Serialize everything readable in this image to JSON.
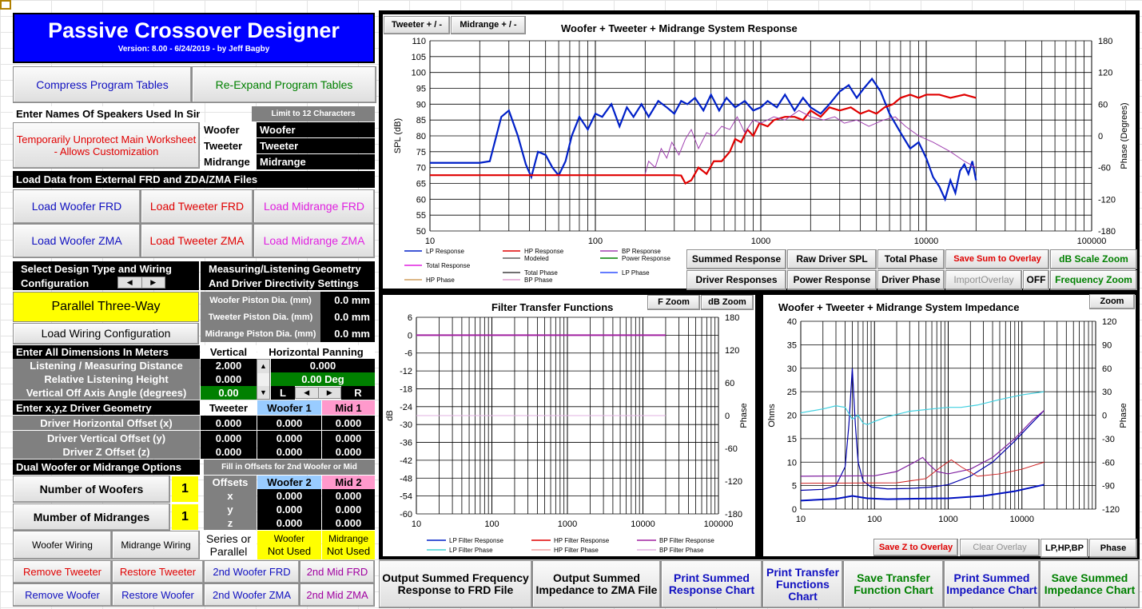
{
  "app": {
    "title": "Passive Crossover Designer",
    "version": "Version: 8.00  -  6/24/2019  -  by Jeff Bagby"
  },
  "top_buttons": {
    "compress": "Compress  Program Tables",
    "reexpand": "Re-Expand Program Tables"
  },
  "names": {
    "header": "Enter Names Of Speakers Used In Simulation",
    "limit": "Limit to 12 Characters",
    "unprotect": "Temporarily Unprotect Main Worksheet - Allows Customization",
    "rows": [
      {
        "label": "Woofer",
        "value": "Woofer"
      },
      {
        "label": "Tweeter",
        "value": "Tweeter"
      },
      {
        "label": "Midrange",
        "value": "Midrange"
      }
    ]
  },
  "load": {
    "header": "Load Data from External FRD and ZDA/ZMA Files",
    "woofer_frd": "Load Woofer FRD",
    "tweeter_frd": "Load Tweeter FRD",
    "mid_frd": "Load Midrange FRD",
    "woofer_zma": "Load Woofer ZMA",
    "tweeter_zma": "Load Tweeter ZMA",
    "mid_zma": "Load Midrange ZMA"
  },
  "design": {
    "select_label": "Select Design Type and Wiring Configuration",
    "type": "Parallel Three-Way",
    "load_wiring": "Load Wiring Configuration"
  },
  "geometry": {
    "title": "Measuring/Listening Geometry And Driver Directivity Settings",
    "rows": [
      {
        "label": "Woofer Piston Dia. (mm)",
        "value": "0.0 mm"
      },
      {
        "label": "Tweeter Piston Dia. (mm)",
        "value": "0.0 mm"
      },
      {
        "label": "Midrange Piston Dia. (mm)",
        "value": "0.0 mm"
      }
    ]
  },
  "dims": {
    "header": "Enter All Dimensions In Meters",
    "vertical": "Vertical",
    "horizontal": "Horizontal Panning",
    "distance_label": "Listening / Measuring  Distance",
    "distance_v": "2.000",
    "distance_h": "0.000",
    "height_label": "Relative Listening Height",
    "height_v": "0.000",
    "deg": "0.00 Deg",
    "angle_label": "Vertical Off Axis Angle (degrees)",
    "angle_v": "0.00",
    "L": "L",
    "R": "R"
  },
  "xyz": {
    "header": "Enter x,y,z Driver Geometry",
    "cols": [
      "Tweeter",
      "Woofer 1",
      "Mid 1"
    ],
    "rows": [
      {
        "label": "Driver Horizontal Offset (x)",
        "vals": [
          "0.000",
          "0.000",
          "0.000"
        ]
      },
      {
        "label": "Driver Vertical Offset (y)",
        "vals": [
          "0.000",
          "0.000",
          "0.000"
        ]
      },
      {
        "label": "Driver Z Offset (z)",
        "vals": [
          "0.000",
          "0.000",
          "0.000"
        ]
      }
    ]
  },
  "dual": {
    "header": "Dual Woofer or Midrange Options",
    "fill": "Fill in Offsets for 2nd Woofer or Mid",
    "num_woofers_label": "Number of Woofers",
    "num_woofers": "1",
    "num_mids_label": "Mumber of Midranges",
    "num_mids": "1",
    "offsets": "Offsets",
    "w2": "Woofer 2",
    "m2": "Mid 2",
    "rows": [
      {
        "label": "x",
        "vals": [
          "0.000",
          "0.000"
        ]
      },
      {
        "label": "y",
        "vals": [
          "0.000",
          "0.000"
        ]
      },
      {
        "label": "z",
        "vals": [
          "0.000",
          "0.000"
        ]
      }
    ]
  },
  "wiring": {
    "woofer_wiring": "Woofer Wiring",
    "mid_wiring": "Midrange Wiring",
    "series_parallel": "Series or Parallel",
    "woofer_label": "Woofer",
    "woofer_status": "Not Used",
    "mid_label": "Midrange",
    "mid_status": "Not Used"
  },
  "bottom_left": {
    "remove_tweeter": "Remove Tweeter",
    "restore_tweeter": "Restore Tweeter",
    "woofer2_frd": "2nd Woofer FRD",
    "mid2_frd": "2nd Mid FRD",
    "remove_woofer": "Remove Woofer",
    "restore_woofer": "Restore Woofer",
    "woofer2_zma": "2nd Woofer ZMA",
    "mid2_zma": "2nd Mid ZMA"
  },
  "main_chart": {
    "tab_tweeter": "Tweeter  + / -",
    "tab_mid": "Midrange  + / -",
    "title": "Woofer + Tweeter + Midrange  System Response",
    "ylabel": "SPL (dB)",
    "y2label": "Phase (Degrees)",
    "yticks": [
      "110",
      "105",
      "100",
      "95",
      "90",
      "85",
      "80",
      "75",
      "70",
      "65",
      "60",
      "55",
      "50"
    ],
    "y2ticks": [
      "180",
      "120",
      "60",
      "0",
      "-60",
      "-120",
      "-180"
    ],
    "xticks": [
      "10",
      "100",
      "1000",
      "10000",
      "100000"
    ],
    "legend": [
      [
        "LP Response",
        "HP Response",
        "BP Response"
      ],
      [
        "",
        "Modeled",
        "Power Response"
      ],
      [
        "Total Response",
        "",
        ""
      ],
      [
        "",
        "Total Phase",
        "LP Phase"
      ],
      [
        "HP Phase",
        "BP Phase",
        ""
      ]
    ],
    "colors": {
      "lp": "#0020c8",
      "hp": "#e00000",
      "bp": "#a040b0",
      "power": "#00a000"
    }
  },
  "chart_buttons": {
    "summed": "Summed Response",
    "raw": "Raw Driver SPL",
    "total_phase": "Total Phase",
    "save_sum": "Save Sum to Overlay",
    "db_zoom": "dB Scale Zoom",
    "driver_resp": "Driver Responses",
    "power_resp": "Power Response",
    "driver_phase": "Driver Phase",
    "import_overlay": "ImportOverlay",
    "off": "OFF",
    "freq_zoom": "Frequency Zoom"
  },
  "filter_chart": {
    "title": "Filter Transfer Functions",
    "f_zoom": "F Zoom",
    "db_zoom": "dB Zoom",
    "ylabel": "dB",
    "y2label": "Phase",
    "yticks": [
      "6",
      "0",
      "-6",
      "-12",
      "-18",
      "-24",
      "-30",
      "-36",
      "-42",
      "-48",
      "-54",
      "-60"
    ],
    "y2ticks": [
      "180",
      "120",
      "60",
      "0",
      "-60",
      "-120",
      "-180"
    ],
    "xticks": [
      "10",
      "100",
      "1000",
      "10000",
      "100000"
    ],
    "legend": [
      [
        "LP Filter Response",
        "HP Filter Response",
        "BP Filter Response"
      ],
      [
        "LP Filter Phase",
        "HP Filter Phase",
        "BP Filter Phase"
      ]
    ]
  },
  "imp_chart": {
    "title": "Woofer + Tweeter + Midrange  System Impedance",
    "zoom": "Zoom",
    "ylabel": "Ohms",
    "y2label": "Phase",
    "yticks": [
      "40",
      "35",
      "30",
      "25",
      "20",
      "15",
      "10",
      "5",
      "0"
    ],
    "y2ticks": [
      "120",
      "90",
      "60",
      "30",
      "0",
      "-30",
      "-60",
      "-90",
      "-120"
    ],
    "xticks": [
      "10",
      "100",
      "1000",
      "10000"
    ],
    "save_z": "Save Z to Overlay",
    "clear_overlay": "Clear Overlay",
    "lphpbp": "LP,HP,BP",
    "phase": "Phase"
  },
  "bottom_buttons": {
    "out_frd": "Output  Summed Frequency Response to FRD File",
    "out_zma": "Output  Summed Impedance to ZMA File",
    "print_summed": "Print Summed Response  Chart",
    "print_transfer": "Print Transfer Functions Chart",
    "save_transfer": "Save Transfer Function Chart",
    "print_imp": "Print Summed Impedance Chart",
    "save_imp": "Save Summed Impedance Chart"
  }
}
